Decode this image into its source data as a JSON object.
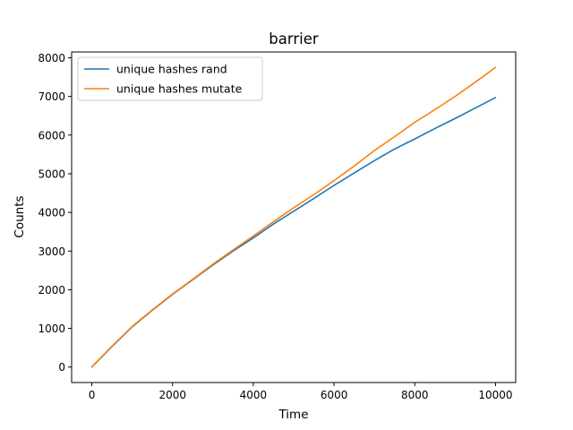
{
  "chart_data": {
    "type": "line",
    "title": "barrier",
    "xlabel": "Time",
    "ylabel": "Counts",
    "xlim": [
      -500,
      10500
    ],
    "ylim": [
      -400,
      8150
    ],
    "xticks": [
      0,
      2000,
      4000,
      6000,
      8000,
      10000
    ],
    "yticks": [
      0,
      1000,
      2000,
      3000,
      4000,
      5000,
      6000,
      7000,
      8000
    ],
    "grid": false,
    "legend_position": "top-left",
    "series": [
      {
        "name": "unique hashes rand",
        "color": "#1f77b4",
        "x": [
          0,
          500,
          1000,
          1500,
          2000,
          2500,
          3000,
          3500,
          4000,
          4500,
          5000,
          5500,
          6000,
          6500,
          7000,
          7500,
          8000,
          8500,
          9000,
          9500,
          10000
        ],
        "y": [
          0,
          530,
          1040,
          1470,
          1880,
          2260,
          2640,
          3000,
          3340,
          3700,
          4030,
          4360,
          4700,
          5020,
          5340,
          5640,
          5900,
          6170,
          6430,
          6700,
          6970
        ]
      },
      {
        "name": "unique hashes mutate",
        "color": "#ff7f0e",
        "x": [
          0,
          500,
          1000,
          1500,
          2000,
          2500,
          3000,
          3500,
          4000,
          4500,
          5000,
          5500,
          6000,
          6500,
          7000,
          7500,
          8000,
          8500,
          9000,
          9500,
          10000
        ],
        "y": [
          0,
          540,
          1050,
          1480,
          1890,
          2270,
          2660,
          3030,
          3390,
          3760,
          4120,
          4460,
          4820,
          5200,
          5600,
          5960,
          6330,
          6660,
          7000,
          7370,
          7750
        ]
      }
    ]
  }
}
